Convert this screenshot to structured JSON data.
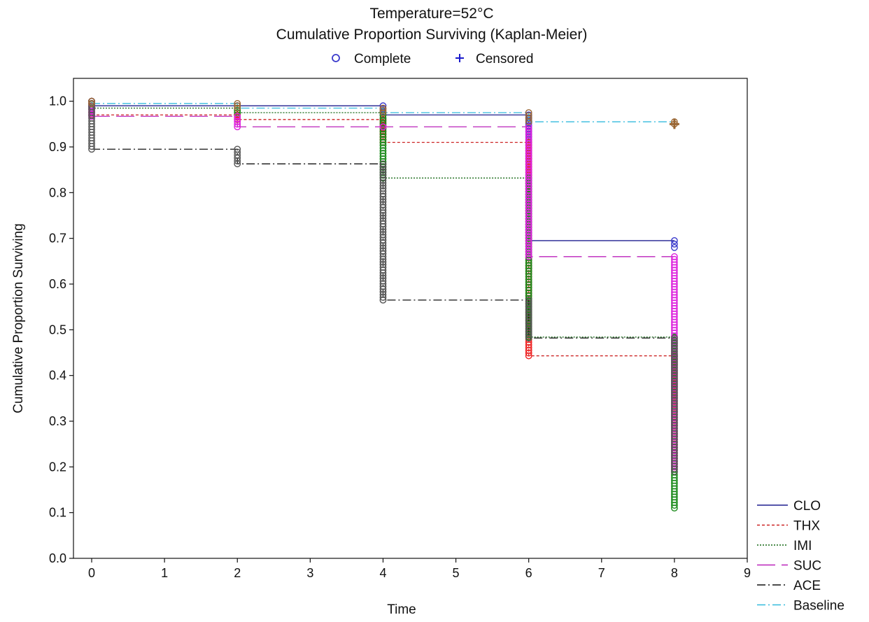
{
  "chart_data": {
    "type": "line",
    "subtype": "kaplan-meier step",
    "title": "Temperature=52°C",
    "subtitle": "Cumulative Proportion Surviving (Kaplan-Meier)",
    "xlabel": "Time",
    "ylabel": "Cumulative Proportion Surviving",
    "xlim": [
      -0.25,
      9
    ],
    "ylim": [
      0.0,
      1.05
    ],
    "xticks": [
      "0",
      "1",
      "2",
      "3",
      "4",
      "5",
      "6",
      "7",
      "8",
      "9"
    ],
    "yticks": [
      "0.0",
      "0.1",
      "0.2",
      "0.3",
      "0.4",
      "0.5",
      "0.6",
      "0.7",
      "0.8",
      "0.9",
      "1.0"
    ],
    "grid": false,
    "marker_legend": [
      {
        "label": "Complete",
        "marker": "circle",
        "color": "#3a3acc"
      },
      {
        "label": "Censored",
        "marker": "plus",
        "color": "#1a1acc"
      }
    ],
    "legend_position": "bottom-right",
    "series": [
      {
        "name": "CLO",
        "color": "#1f1f8f",
        "dash": "",
        "x": [
          0,
          2,
          4,
          6,
          8
        ],
        "y": [
          0.99,
          0.99,
          0.97,
          0.695,
          0.68
        ],
        "marker_color": "#3a3acc"
      },
      {
        "name": "THX",
        "color": "#cc2222",
        "dash": "4,3",
        "x": [
          0,
          2,
          4,
          6,
          8
        ],
        "y": [
          0.97,
          0.96,
          0.91,
          0.443,
          0.2
        ],
        "marker_color": "#ee2222"
      },
      {
        "name": "IMI",
        "color": "#116611",
        "dash": "2,2",
        "x": [
          0,
          2,
          4,
          6,
          8
        ],
        "y": [
          0.985,
          0.975,
          0.832,
          0.484,
          0.11
        ],
        "marker_color": "#1a8a1a"
      },
      {
        "name": "SUC",
        "color": "#bb22bb",
        "dash": "26,9",
        "x": [
          0,
          2,
          4,
          6,
          8
        ],
        "y": [
          0.967,
          0.944,
          0.944,
          0.66,
          0.2
        ],
        "marker_color": "#dd22dd"
      },
      {
        "name": "ACE",
        "color": "#111111",
        "dash": "12,4,2,4",
        "x": [
          0,
          2,
          4,
          6,
          8
        ],
        "y": [
          0.895,
          0.863,
          0.565,
          0.482,
          0.19
        ],
        "marker_color": "#555555"
      },
      {
        "name": "Baseline",
        "color": "#33bbdd",
        "dash": "12,4,2,4",
        "x": [
          0,
          2,
          4,
          6,
          8
        ],
        "y": [
          0.995,
          0.985,
          0.975,
          0.955,
          0.95
        ],
        "marker_color": "#996633"
      }
    ]
  }
}
